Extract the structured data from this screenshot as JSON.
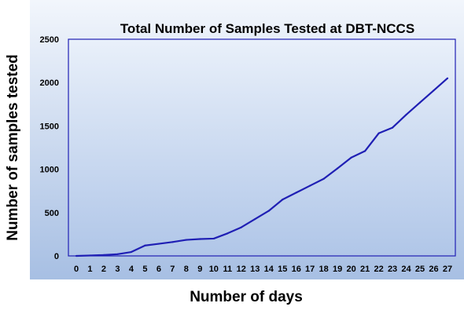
{
  "chart_data": {
    "type": "line",
    "title": "Total Number of Samples Tested at DBT-NCCS",
    "xlabel": "Number of days",
    "ylabel": "Number of samples tested",
    "xlim": [
      0,
      27
    ],
    "ylim": [
      0,
      2500
    ],
    "yticks": [
      0,
      500,
      1000,
      1500,
      2000,
      2500
    ],
    "x": [
      0,
      1,
      2,
      3,
      4,
      5,
      6,
      7,
      8,
      9,
      10,
      11,
      12,
      13,
      14,
      15,
      16,
      17,
      18,
      19,
      20,
      21,
      22,
      23,
      24,
      25,
      26,
      27
    ],
    "series": [
      {
        "values": [
          0,
          5,
          10,
          20,
          45,
          120,
          140,
          160,
          185,
          195,
          200,
          260,
          330,
          425,
          520,
          650,
          730,
          810,
          890,
          1010,
          1135,
          1210,
          1415,
          1480,
          1630,
          1770,
          1910,
          2050
        ]
      }
    ],
    "grid": false,
    "legend": "none",
    "colors": {
      "line": "#1f1fb4",
      "plot_border": "#1f1fb4",
      "background_top": "#f2f6fc",
      "background_bottom": "#a7bfe3",
      "plot_top": "#e9f0fa",
      "plot_bottom": "#b0c6e8"
    }
  }
}
